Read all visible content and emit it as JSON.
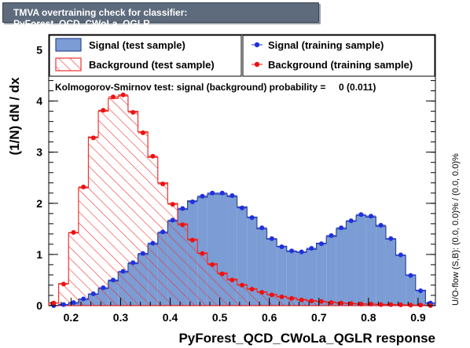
{
  "window": {
    "title": "TMVA overtraining check for classifier: PyForest_QCD_CWoLa_QGLR"
  },
  "chart_data": {
    "type": "bar",
    "title": "TMVA overtraining check for classifier: PyForest_QCD_CWoLa_QGLR",
    "xlabel": "PyForest_QCD_CWoLa_QGLR response",
    "ylabel": "(1/N) dN / dx",
    "xlim": [
      0.155,
      0.935
    ],
    "ylim": [
      0,
      5.3
    ],
    "x_ticks": [
      "0.2",
      "0.3",
      "0.4",
      "0.5",
      "0.6",
      "0.7",
      "0.8",
      "0.9"
    ],
    "x_tick_values": [
      0.2,
      0.3,
      0.4,
      0.5,
      0.6,
      0.7,
      0.8,
      0.9
    ],
    "y_ticks": [
      "0",
      "1",
      "2",
      "3",
      "4",
      "5"
    ],
    "y_tick_values": [
      0,
      1,
      2,
      3,
      4,
      5
    ],
    "bin_edges": [
      0.155,
      0.175,
      0.195,
      0.215,
      0.235,
      0.255,
      0.275,
      0.295,
      0.315,
      0.335,
      0.355,
      0.375,
      0.395,
      0.415,
      0.435,
      0.455,
      0.475,
      0.495,
      0.515,
      0.535,
      0.555,
      0.575,
      0.595,
      0.615,
      0.635,
      0.655,
      0.675,
      0.695,
      0.715,
      0.735,
      0.755,
      0.775,
      0.795,
      0.815,
      0.835,
      0.855,
      0.875,
      0.895,
      0.915,
      0.935
    ],
    "series": [
      {
        "name": "Signal (test sample)",
        "style": "filled",
        "color": "#7b9cd4",
        "edge_color": "#2e4a96",
        "values": [
          0.0,
          0.02,
          0.05,
          0.12,
          0.22,
          0.33,
          0.48,
          0.65,
          0.82,
          1.0,
          1.2,
          1.42,
          1.65,
          1.88,
          2.05,
          2.12,
          2.18,
          2.18,
          2.13,
          1.93,
          1.73,
          1.5,
          1.3,
          1.16,
          1.06,
          1.04,
          1.1,
          1.22,
          1.35,
          1.5,
          1.65,
          1.76,
          1.73,
          1.55,
          1.3,
          0.98,
          0.6,
          0.3,
          0.05
        ]
      },
      {
        "name": "Background (test sample)",
        "style": "hatched",
        "color": "#ee3333",
        "values": [
          0.05,
          0.43,
          1.42,
          2.3,
          3.3,
          3.8,
          4.05,
          4.1,
          3.8,
          3.4,
          2.9,
          2.4,
          2.0,
          1.6,
          1.3,
          1.03,
          0.82,
          0.64,
          0.52,
          0.41,
          0.33,
          0.27,
          0.22,
          0.18,
          0.15,
          0.12,
          0.1,
          0.08,
          0.07,
          0.05,
          0.04,
          0.035,
          0.03,
          0.025,
          0.02,
          0.015,
          0.01,
          0.01,
          0.0
        ]
      },
      {
        "name": "Signal (training sample)",
        "style": "points",
        "color": "#1f2fe0",
        "values": [
          0.0,
          0.02,
          0.06,
          0.13,
          0.23,
          0.35,
          0.5,
          0.67,
          0.84,
          1.02,
          1.22,
          1.44,
          1.67,
          1.9,
          2.03,
          2.14,
          2.2,
          2.2,
          2.15,
          1.91,
          1.72,
          1.52,
          1.31,
          1.15,
          1.07,
          1.05,
          1.12,
          1.21,
          1.37,
          1.52,
          1.66,
          1.78,
          1.75,
          1.57,
          1.31,
          0.99,
          0.59,
          0.29,
          0.05
        ]
      },
      {
        "name": "Background (training sample)",
        "style": "points",
        "color": "#ee1111",
        "values": [
          0.05,
          0.42,
          1.43,
          2.32,
          3.28,
          3.82,
          4.08,
          4.12,
          3.78,
          3.38,
          2.92,
          2.38,
          1.98,
          1.58,
          1.28,
          1.02,
          0.8,
          0.62,
          0.5,
          0.4,
          0.32,
          0.26,
          0.21,
          0.17,
          0.14,
          0.11,
          0.09,
          0.08,
          0.06,
          0.05,
          0.04,
          0.03,
          0.03,
          0.02,
          0.02,
          0.015,
          0.01,
          0.01,
          0.0
        ]
      }
    ],
    "legend": {
      "placement": "top",
      "entries": [
        "Signal (test sample)",
        "Background (test sample)",
        "Signal (training sample)",
        "Background (training sample)"
      ]
    },
    "annotations": {
      "ks_test": "Kolmogorov-Smirnov test: signal (background) probability =     0 (0.011)",
      "overflow": "U/O-flow (S,B): (0.0, 0.0)% / (0.0, 0.0)%"
    },
    "grid": false
  }
}
